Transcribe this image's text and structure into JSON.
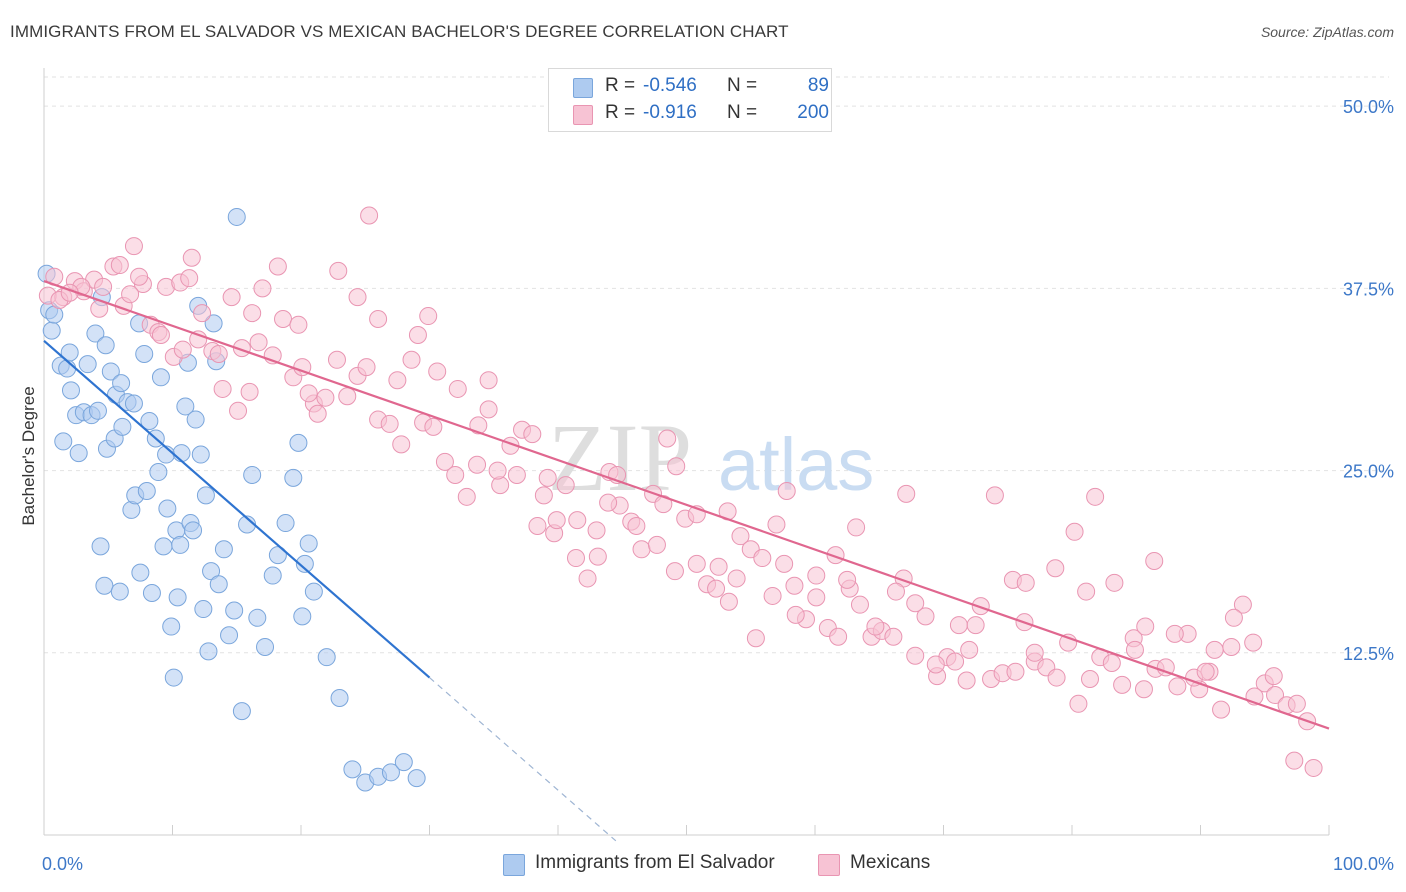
{
  "title": "IMMIGRANTS FROM EL SALVADOR VS MEXICAN BACHELOR'S DEGREE CORRELATION CHART",
  "source": "Source: ZipAtlas.com",
  "watermark": {
    "zip": "ZIP",
    "atlas": "atlas"
  },
  "colors": {
    "blue_fill": "#aecbf0",
    "blue_stroke": "#7aa6dc",
    "blue_line": "#2f74d0",
    "pink_fill": "#f7c3d4",
    "pink_stroke": "#e995b2",
    "pink_line": "#e0678f",
    "value_text": "#3d78c8",
    "grid": "#e2e2e2"
  },
  "legend": {
    "rows": [
      {
        "r_label": "R =",
        "r_value": "-0.546",
        "n_label": "N =",
        "n_value": "89"
      },
      {
        "r_label": "R =",
        "r_value": "-0.916",
        "n_label": "N =",
        "n_value": "200"
      }
    ]
  },
  "chart_data": {
    "type": "scatter",
    "title": "IMMIGRANTS FROM EL SALVADOR VS MEXICAN BACHELOR'S DEGREE CORRELATION CHART",
    "xlabel": "",
    "ylabel": "Bachelor's Degree",
    "xlim": [
      0,
      100
    ],
    "ylim": [
      0,
      52
    ],
    "x_tick_labels": [
      {
        "value": 0,
        "label": "0.0%"
      },
      {
        "value": 100,
        "label": "100.0%"
      }
    ],
    "y_tick_labels": [
      {
        "value": 12.5,
        "label": "12.5%"
      },
      {
        "value": 25,
        "label": "25.0%"
      },
      {
        "value": 37.5,
        "label": "37.5%"
      },
      {
        "value": 50,
        "label": "50.0%"
      }
    ],
    "grid": "horizontal dashed",
    "legend_position": "bottom",
    "series": [
      {
        "name": "Immigrants from El Salvador",
        "color": "#aecbf0",
        "trend": {
          "x": [
            0,
            30
          ],
          "y": [
            33.9,
            10.8
          ],
          "dashed_to": [
            44.5,
            -0.4
          ]
        },
        "x": [
          0.2,
          0.4,
          0.6,
          0.8,
          1.3,
          1.8,
          2.1,
          1.5,
          2.0,
          2.5,
          2.7,
          3.1,
          3.4,
          3.7,
          4.0,
          4.2,
          4.4,
          4.5,
          4.7,
          4.8,
          4.9,
          5.2,
          5.5,
          5.6,
          5.9,
          6.0,
          6.1,
          6.5,
          6.8,
          7.0,
          7.1,
          7.4,
          7.5,
          7.8,
          8.0,
          8.2,
          8.4,
          8.7,
          8.9,
          9.1,
          9.3,
          9.5,
          9.6,
          9.9,
          10.1,
          10.3,
          10.4,
          10.6,
          10.7,
          11.0,
          11.2,
          11.4,
          11.6,
          11.8,
          12.0,
          12.2,
          12.4,
          12.6,
          12.8,
          13.0,
          13.2,
          13.4,
          13.6,
          14.0,
          14.4,
          14.8,
          15.0,
          15.4,
          15.8,
          16.2,
          16.6,
          17.2,
          17.8,
          18.2,
          18.8,
          19.4,
          19.8,
          20.1,
          20.3,
          20.6,
          21.0,
          22.0,
          23.0,
          24.0,
          25.0,
          26.0,
          27.0,
          28.0,
          29.0
        ],
        "y": [
          38.5,
          36.0,
          34.6,
          35.7,
          32.2,
          32.0,
          30.5,
          27.0,
          33.1,
          28.8,
          26.2,
          29.0,
          32.3,
          28.8,
          34.4,
          29.1,
          19.8,
          36.9,
          17.1,
          33.6,
          26.5,
          31.8,
          27.2,
          30.2,
          16.7,
          31.0,
          28.0,
          29.7,
          22.3,
          29.6,
          23.3,
          35.1,
          18.0,
          33.0,
          23.6,
          28.4,
          16.6,
          27.2,
          24.9,
          31.4,
          19.8,
          26.1,
          22.4,
          14.3,
          10.8,
          20.9,
          16.3,
          19.9,
          26.2,
          29.4,
          32.4,
          21.4,
          20.9,
          28.5,
          36.3,
          26.1,
          15.5,
          23.3,
          12.6,
          18.1,
          35.1,
          32.5,
          17.2,
          19.6,
          13.7,
          15.4,
          42.4,
          8.5,
          21.3,
          24.7,
          14.9,
          12.9,
          17.8,
          19.2,
          21.4,
          24.5,
          26.9,
          15.0,
          18.6,
          20.0,
          16.7,
          12.2,
          9.4,
          4.5,
          3.6,
          4.0,
          4.3,
          5.0,
          3.9
        ]
      },
      {
        "name": "Mexicans",
        "color": "#f7c3d4",
        "trend": {
          "x": [
            0,
            100
          ],
          "y": [
            38.0,
            7.3
          ]
        },
        "x": [
          0.3,
          0.8,
          1.5,
          2.4,
          3.1,
          3.9,
          4.6,
          5.4,
          6.2,
          7.0,
          7.7,
          8.3,
          8.9,
          9.5,
          10.1,
          10.8,
          11.5,
          12.3,
          13.1,
          13.9,
          14.6,
          15.4,
          16.2,
          17.0,
          17.8,
          18.6,
          19.4,
          20.1,
          21.0,
          21.9,
          22.8,
          23.6,
          24.4,
          25.1,
          26.0,
          26.9,
          27.8,
          28.6,
          29.5,
          30.3,
          31.2,
          32.0,
          32.9,
          33.8,
          34.6,
          35.5,
          36.3,
          37.2,
          38.0,
          38.9,
          39.7,
          40.6,
          41.4,
          42.3,
          43.1,
          44.0,
          44.8,
          45.7,
          46.5,
          47.4,
          48.2,
          49.1,
          49.9,
          50.8,
          51.6,
          52.5,
          53.3,
          54.2,
          55.0,
          55.9,
          56.7,
          57.6,
          58.4,
          59.3,
          60.1,
          61.0,
          61.8,
          62.7,
          63.5,
          64.4,
          65.2,
          66.1,
          66.9,
          67.8,
          68.6,
          69.5,
          70.3,
          71.2,
          72.0,
          72.9,
          73.7,
          74.6,
          75.4,
          76.3,
          77.1,
          78.0,
          78.8,
          79.7,
          80.5,
          81.4,
          82.2,
          83.1,
          83.9,
          84.8,
          85.6,
          86.5,
          87.3,
          88.2,
          89.0,
          89.9,
          90.7,
          91.6,
          92.4,
          93.3,
          94.1,
          95.0,
          95.8,
          96.7,
          97.5,
          98.3,
          1.2,
          2.9,
          4.3,
          5.9,
          7.4,
          9.1,
          10.6,
          12.0,
          13.6,
          15.1,
          16.7,
          18.2,
          19.8,
          21.3,
          22.9,
          24.4,
          26.0,
          27.5,
          29.1,
          30.6,
          32.2,
          33.7,
          35.3,
          36.8,
          38.4,
          39.9,
          41.5,
          43.0,
          44.6,
          46.1,
          47.7,
          49.2,
          50.8,
          52.3,
          53.9,
          55.4,
          57.0,
          58.5,
          60.1,
          61.6,
          63.2,
          64.7,
          66.3,
          67.8,
          69.4,
          70.9,
          72.5,
          74.0,
          75.6,
          77.1,
          78.7,
          80.2,
          81.8,
          83.3,
          84.9,
          86.4,
          88.0,
          89.5,
          91.1,
          92.6,
          94.2,
          95.7,
          97.3,
          98.8,
          2.0,
          6.7,
          11.3,
          16.0,
          20.6,
          25.3,
          29.9,
          34.6,
          39.2,
          43.9,
          48.5,
          53.2,
          57.8,
          62.5,
          67.1,
          71.8,
          76.4,
          81.1,
          85.7,
          90.4
        ],
        "y": [
          37.0,
          38.3,
          36.9,
          38.0,
          37.3,
          38.1,
          37.6,
          39.0,
          36.3,
          40.4,
          37.8,
          35.0,
          34.5,
          37.6,
          32.8,
          33.3,
          39.6,
          35.8,
          33.2,
          30.6,
          36.9,
          33.4,
          35.8,
          37.5,
          32.9,
          35.4,
          31.4,
          32.1,
          29.6,
          30.0,
          32.6,
          30.1,
          31.5,
          32.1,
          28.5,
          28.2,
          26.8,
          32.6,
          28.3,
          28.0,
          25.6,
          24.7,
          23.2,
          28.1,
          29.2,
          24.0,
          26.7,
          27.8,
          27.5,
          23.3,
          20.7,
          24.0,
          19.0,
          17.6,
          19.1,
          24.9,
          22.6,
          21.5,
          19.6,
          23.4,
          22.7,
          18.1,
          21.7,
          18.6,
          17.2,
          18.4,
          16.0,
          20.5,
          19.6,
          19.0,
          16.4,
          18.6,
          17.1,
          14.8,
          16.3,
          14.2,
          13.6,
          16.9,
          15.8,
          13.6,
          14.0,
          13.6,
          17.6,
          12.3,
          15.0,
          10.9,
          12.2,
          14.4,
          12.7,
          15.7,
          10.7,
          11.1,
          17.5,
          14.6,
          11.9,
          11.5,
          10.8,
          13.2,
          9.0,
          10.7,
          12.2,
          11.8,
          10.3,
          13.5,
          10.0,
          11.4,
          11.5,
          10.2,
          13.8,
          10.0,
          11.2,
          8.6,
          12.9,
          15.8,
          13.2,
          10.4,
          9.6,
          8.9,
          9.0,
          7.8,
          36.7,
          37.6,
          36.1,
          39.1,
          38.3,
          34.3,
          37.9,
          34.0,
          33.0,
          29.1,
          33.8,
          39.0,
          35.0,
          28.9,
          38.7,
          36.9,
          35.4,
          31.2,
          34.3,
          31.8,
          30.6,
          25.4,
          25.0,
          24.7,
          21.2,
          21.6,
          21.6,
          20.9,
          24.7,
          21.2,
          19.9,
          25.3,
          22.0,
          16.9,
          17.6,
          13.5,
          21.3,
          15.1,
          17.8,
          19.2,
          21.1,
          14.3,
          16.7,
          15.9,
          11.7,
          11.9,
          14.4,
          23.3,
          11.2,
          12.5,
          18.3,
          20.8,
          23.2,
          17.3,
          12.7,
          18.8,
          13.8,
          10.8,
          12.7,
          14.9,
          9.5,
          10.9,
          5.1,
          4.6,
          37.2,
          37.1,
          38.2,
          30.4,
          30.3,
          42.5,
          35.6,
          31.2,
          24.5,
          22.8,
          27.2,
          22.2,
          23.6,
          17.5,
          23.4,
          10.6,
          17.3,
          16.7,
          14.3,
          11.2
        ]
      }
    ]
  },
  "bottom_legend": [
    {
      "label": "Immigrants from El Salvador"
    },
    {
      "label": "Mexicans"
    }
  ]
}
